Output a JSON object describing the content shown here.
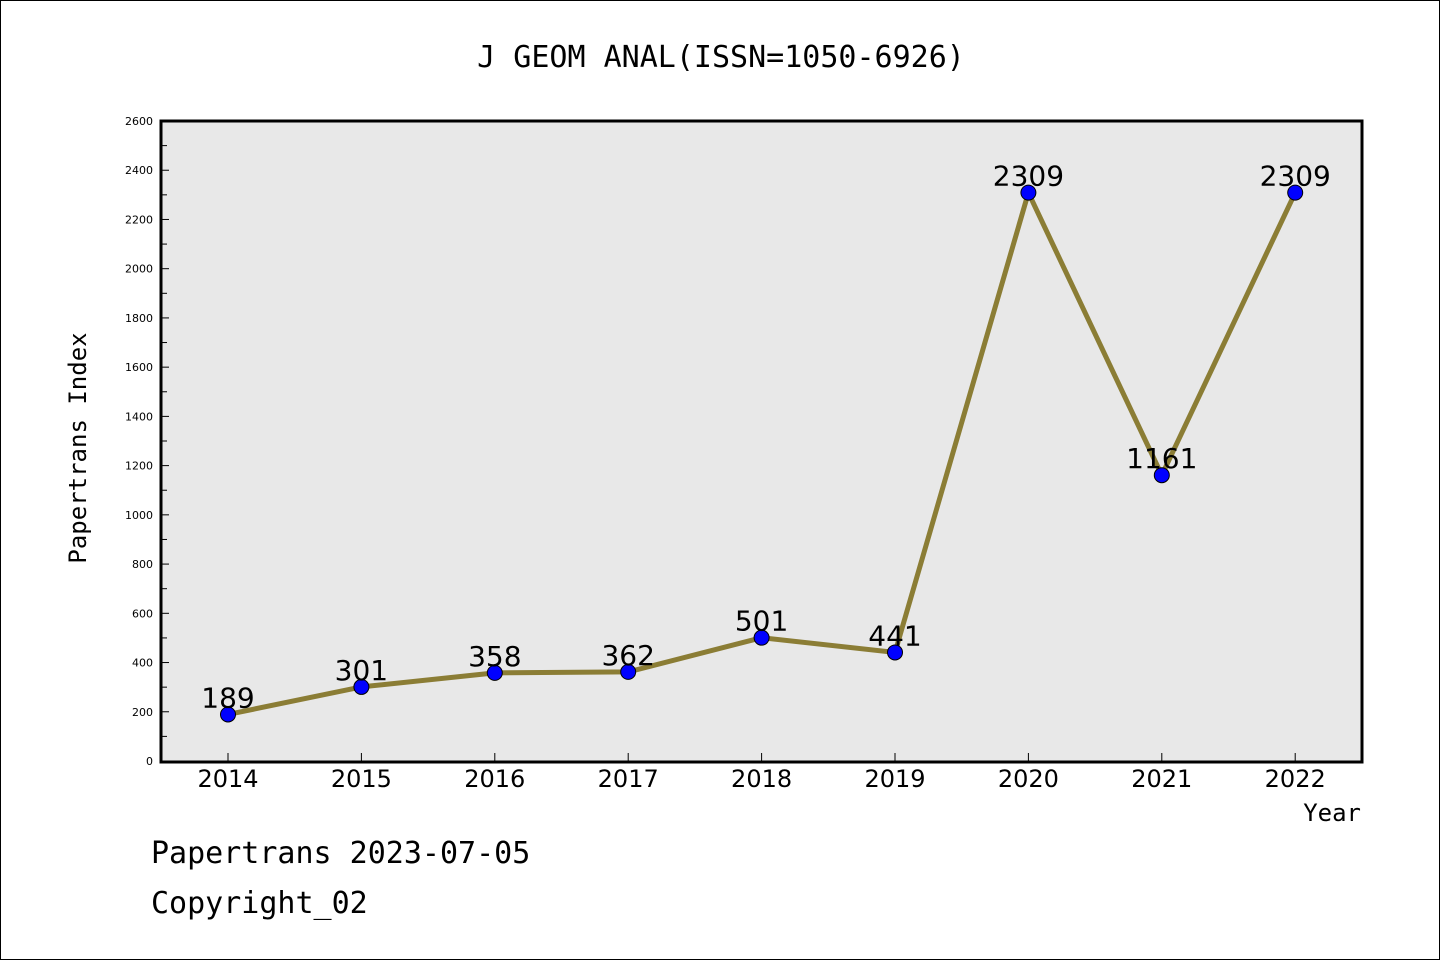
{
  "chart_data": {
    "type": "line",
    "title": "J GEOM ANAL(ISSN=1050-6926)",
    "xlabel": "Year",
    "ylabel": "Papertrans Index",
    "categories": [
      "2014",
      "2015",
      "2016",
      "2017",
      "2018",
      "2019",
      "2020",
      "2021",
      "2022"
    ],
    "values": [
      189,
      301,
      358,
      362,
      501,
      441,
      2309,
      1161,
      2309
    ],
    "data_labels": [
      "189",
      "301",
      "358",
      "362",
      "501",
      "441",
      "2309",
      "1161",
      "2309"
    ],
    "ylim": [
      0,
      2600
    ],
    "yticks": [
      "0",
      "200",
      "400",
      "600",
      "800",
      "1000",
      "1200",
      "1400",
      "1600",
      "1800",
      "2000",
      "2200",
      "2400",
      "2600"
    ],
    "grid": false,
    "legend": "none",
    "line_color": "#8b7d35",
    "marker_color": "#0000ff",
    "plot_background": "#e8e8e8"
  },
  "footer": {
    "line1": "Papertrans 2023-07-05",
    "line2": "Copyright_02"
  }
}
